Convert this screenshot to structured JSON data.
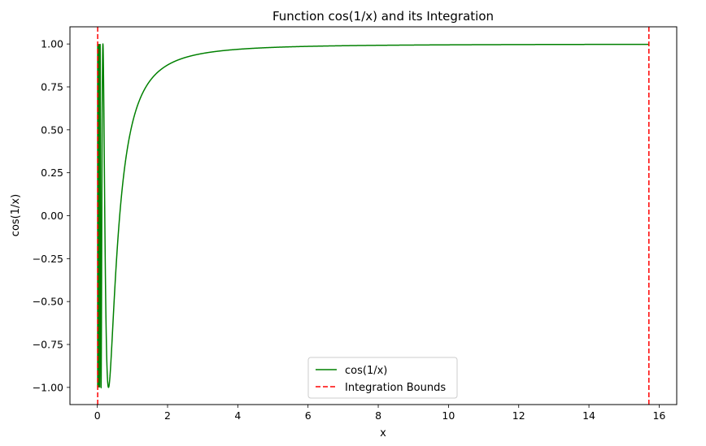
{
  "chart_data": {
    "type": "line",
    "title": "Function cos(1/x) and its Integration",
    "xlabel": "x",
    "ylabel": "cos(1/x)",
    "xlim": [
      -0.78,
      16.5
    ],
    "ylim": [
      -1.1,
      1.1
    ],
    "xticks": [
      0,
      2,
      4,
      6,
      8,
      10,
      12,
      14,
      16
    ],
    "yticks": [
      -1.0,
      -0.75,
      -0.5,
      -0.25,
      0.0,
      0.25,
      0.5,
      0.75,
      1.0
    ],
    "xtick_labels": [
      "0",
      "2",
      "4",
      "6",
      "8",
      "10",
      "12",
      "14",
      "16"
    ],
    "ytick_labels": [
      "−1.00",
      "−0.75",
      "−0.50",
      "−0.25",
      "0.00",
      "0.25",
      "0.50",
      "0.75",
      "1.00"
    ],
    "grid": false,
    "legend_placement": "lower-center",
    "series": [
      {
        "name": "cos(1/x)",
        "function": "cos(1/x)",
        "x_range": [
          0.01,
          15.708
        ],
        "color": "#008000",
        "style": "solid"
      }
    ],
    "vlines": [
      {
        "name": "Integration Bounds",
        "x": [
          0.01,
          15.708
        ],
        "color": "#ff0000",
        "style": "dashed"
      }
    ]
  }
}
